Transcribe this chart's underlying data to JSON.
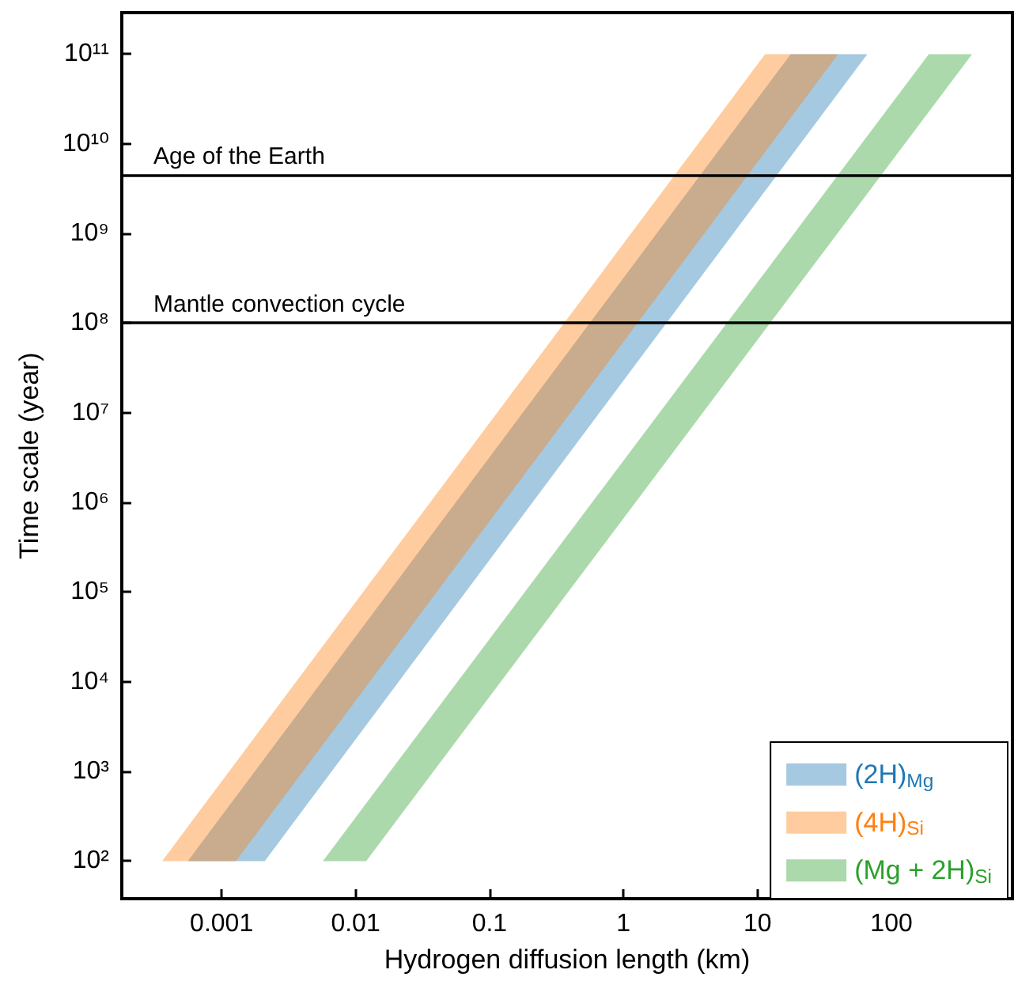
{
  "chart_data": {
    "type": "area",
    "xlabel": "Hydrogen diffusion length (km)",
    "ylabel": "Time scale (year)",
    "log": "xy",
    "xlim": [
      0.00018,
      800
    ],
    "ylim": [
      38,
      290000000000.0
    ],
    "xticks": [
      {
        "value": 0.001,
        "label": "0.001"
      },
      {
        "value": 0.01,
        "label": "0.01"
      },
      {
        "value": 0.1,
        "label": "0.1"
      },
      {
        "value": 1,
        "label": "1"
      },
      {
        "value": 10,
        "label": "10"
      },
      {
        "value": 100,
        "label": "100"
      }
    ],
    "yticks": [
      {
        "value": 100,
        "label": "10²"
      },
      {
        "value": 1000,
        "label": "10³"
      },
      {
        "value": 10000,
        "label": "10⁴"
      },
      {
        "value": 100000,
        "label": "10⁵"
      },
      {
        "value": 1000000,
        "label": "10⁶"
      },
      {
        "value": 10000000,
        "label": "10⁷"
      },
      {
        "value": 100000000,
        "label": "10⁸"
      },
      {
        "value": 1000000000,
        "label": "10⁹"
      },
      {
        "value": 10000000000,
        "label": "10¹⁰"
      },
      {
        "value": 100000000000,
        "label": "10¹¹"
      }
    ],
    "grid": false,
    "legend": "bottom right",
    "series": [
      {
        "name": "(2H)$_{Mg}$",
        "color": "#1f77b4",
        "x": [
          0.00056,
          0.0021,
          66,
          17.7
        ],
        "values": [
          100,
          100,
          100000000000.0,
          100000000000.0
        ]
      },
      {
        "name": "(4H)$_{Si}$",
        "color": "#ff7f0e",
        "x": [
          0.00036,
          0.00128,
          40,
          11.4
        ],
        "values": [
          100,
          100,
          100000000000.0,
          100000000000.0
        ]
      },
      {
        "name": "(Mg + 2H)$_{Si}$",
        "color": "#2ca02c",
        "x": [
          0.0057,
          0.012,
          400,
          190
        ],
        "values": [
          100,
          100,
          100000000000.0,
          100000000000.0
        ]
      }
    ],
    "ref_lines": [
      {
        "axis": "y",
        "value": 4500000000.0,
        "label": "Age of the Earth",
        "color": "#000000"
      },
      {
        "axis": "y",
        "value": 100000000.0,
        "label": "Mantle convection cycle",
        "color": "#000000"
      }
    ]
  }
}
